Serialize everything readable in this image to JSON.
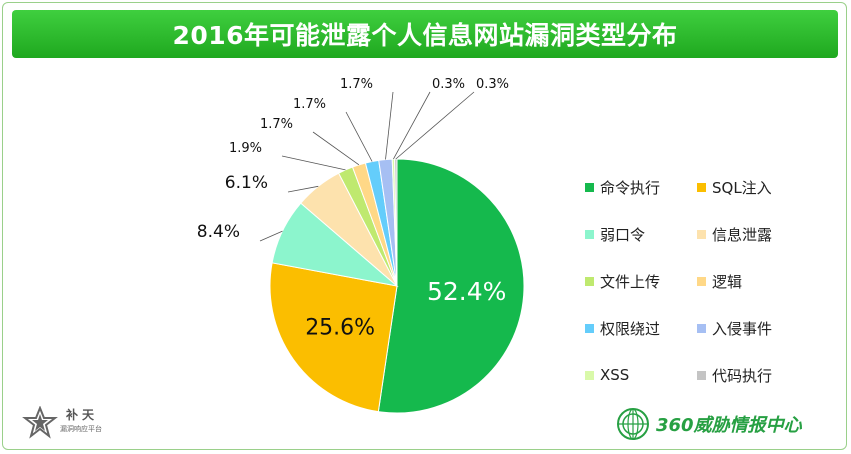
{
  "title": "2016年可能泄露个人信息网站漏洞类型分布",
  "chart_data": {
    "type": "pie",
    "title": "2016年可能泄露个人信息网站漏洞类型分布",
    "slices": [
      {
        "label": "命令执行",
        "value": 52.4,
        "display": "52.4%",
        "color": "#15b94d"
      },
      {
        "label": "SQL注入",
        "value": 25.6,
        "display": "25.6%",
        "color": "#fbbe00"
      },
      {
        "label": "弱口令",
        "value": 8.4,
        "display": "8.4%",
        "color": "#8cf5cd"
      },
      {
        "label": "信息泄露",
        "value": 6.1,
        "display": "6.1%",
        "color": "#fde2ad"
      },
      {
        "label": "文件上传",
        "value": 1.9,
        "display": "1.9%",
        "color": "#bfe96f"
      },
      {
        "label": "逻辑",
        "value": 1.7,
        "display": "1.7%",
        "color": "#ffd887"
      },
      {
        "label": "权限绕过",
        "value": 1.7,
        "display": "1.7%",
        "color": "#64cdfb"
      },
      {
        "label": "入侵事件",
        "value": 1.7,
        "display": "1.7%",
        "color": "#a6bff3"
      },
      {
        "label": "XSS",
        "value": 0.3,
        "display": "0.3%",
        "color": "#d9f9a9"
      },
      {
        "label": "代码执行",
        "value": 0.3,
        "display": "0.3%",
        "color": "#c4c4c4"
      }
    ],
    "legend_position": "right"
  },
  "logos": {
    "left_name": "补天",
    "left_sub": "漏洞响应平台",
    "right_text": "360威胁情报中心"
  }
}
